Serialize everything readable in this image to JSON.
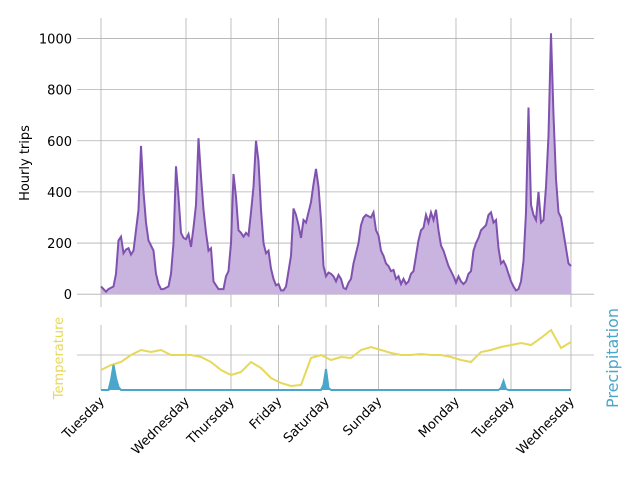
{
  "chart_data": [
    {
      "type": "area",
      "y_label": "Hourly trips",
      "xlim": [
        -9.6,
        197.2
      ],
      "ylim": [
        -50,
        1080
      ],
      "yticks": [
        0,
        200,
        400,
        600,
        800,
        1000
      ],
      "grid": true,
      "series": [
        {
          "name": "Hourly trips",
          "color": "#8052b0",
          "fill": "#c9b4df",
          "x": [
            0,
            1,
            2,
            3,
            4,
            5,
            6,
            7,
            8,
            9,
            10,
            11,
            12,
            13,
            14,
            15,
            16,
            17,
            18,
            19,
            20,
            21,
            22,
            23,
            24,
            25,
            26,
            27,
            28,
            29,
            30,
            31,
            32,
            33,
            34,
            35,
            36,
            37,
            38,
            39,
            40,
            41,
            42,
            43,
            44,
            45,
            46,
            47,
            48,
            49,
            50,
            51,
            52,
            53,
            54,
            55,
            56,
            57,
            58,
            59,
            60,
            61,
            62,
            63,
            64,
            65,
            66,
            67,
            68,
            69,
            70,
            71,
            72,
            73,
            74,
            75,
            76,
            77,
            78,
            79,
            80,
            81,
            82,
            83,
            84,
            85,
            86,
            87,
            88,
            89,
            90,
            91,
            92,
            93,
            94,
            95,
            96,
            97,
            98,
            99,
            100,
            101,
            102,
            103,
            104,
            105,
            106,
            107,
            108,
            109,
            110,
            111,
            112,
            113,
            114,
            115,
            116,
            117,
            118,
            119,
            120,
            121,
            122,
            123,
            124,
            125,
            126,
            127,
            128,
            129,
            130,
            131,
            132,
            133,
            134,
            135,
            136,
            137,
            138,
            139,
            140,
            141,
            142,
            143,
            144,
            145,
            146,
            147,
            148,
            149,
            150,
            151,
            152,
            153,
            154,
            155,
            156,
            157,
            158,
            159,
            160,
            161,
            162,
            163,
            164,
            165,
            166,
            167,
            168,
            169,
            170,
            171,
            172,
            173,
            174,
            175,
            176,
            177,
            178,
            179,
            180,
            181,
            182,
            183,
            184,
            185,
            186,
            187,
            188
          ],
          "values": [
            30,
            20,
            10,
            20,
            25,
            30,
            80,
            210,
            225,
            160,
            175,
            180,
            155,
            170,
            250,
            330,
            580,
            400,
            280,
            210,
            190,
            170,
            80,
            40,
            20,
            20,
            25,
            30,
            80,
            200,
            500,
            380,
            240,
            220,
            215,
            235,
            185,
            260,
            350,
            610,
            460,
            330,
            240,
            170,
            180,
            50,
            35,
            20,
            20,
            20,
            70,
            90,
            200,
            470,
            380,
            250,
            240,
            225,
            240,
            230,
            320,
            420,
            600,
            520,
            330,
            200,
            160,
            170,
            100,
            60,
            35,
            40,
            15,
            15,
            30,
            90,
            150,
            335,
            310,
            270,
            220,
            290,
            280,
            320,
            360,
            430,
            490,
            420,
            290,
            110,
            70,
            85,
            80,
            70,
            50,
            75,
            60,
            25,
            20,
            45,
            60,
            120,
            160,
            200,
            270,
            300,
            310,
            305,
            300,
            320,
            250,
            230,
            170,
            150,
            120,
            110,
            90,
            95,
            60,
            70,
            40,
            60,
            40,
            50,
            80,
            90,
            150,
            210,
            250,
            260,
            310,
            280,
            320,
            290,
            330,
            250,
            190,
            170,
            140,
            110,
            90,
            70,
            45,
            70,
            50,
            40,
            50,
            80,
            90,
            170,
            200,
            220,
            250,
            260,
            270,
            310,
            320,
            280,
            290,
            180,
            120,
            130,
            110,
            80,
            50,
            30,
            15,
            20,
            50,
            130,
            320,
            730,
            350,
            310,
            290,
            400,
            280,
            290,
            420,
            620,
            1020,
            700,
            450,
            320,
            300,
            240,
            180,
            120,
            110
          ]
        }
      ]
    },
    {
      "type": "line",
      "y_label": "Temperature",
      "y2_label": "Precipitation",
      "xlim": [
        -9.6,
        197.2
      ],
      "ylim": [
        0,
        65
      ],
      "y2lim": [
        0,
        65
      ],
      "gridlines": [
        35
      ],
      "grid": true,
      "xticks": [
        {
          "value": 0,
          "label": "Tuesday"
        },
        {
          "value": 34,
          "label": "Wednesday"
        },
        {
          "value": 52,
          "label": "Thursday"
        },
        {
          "value": 71,
          "label": "Friday"
        },
        {
          "value": 90,
          "label": "Saturday"
        },
        {
          "value": 111,
          "label": "Sunday"
        },
        {
          "value": 142,
          "label": "Monday"
        },
        {
          "value": 164,
          "label": "Tuesday"
        },
        {
          "value": 188,
          "label": "Wednesday"
        }
      ],
      "series": [
        {
          "name": "Temperature",
          "color": "#e6d95a",
          "x": [
            0,
            4,
            8,
            12,
            16,
            20,
            24,
            28,
            32,
            36,
            40,
            44,
            48,
            52,
            56,
            60,
            64,
            68,
            72,
            76,
            80,
            84,
            88,
            92,
            96,
            100,
            104,
            108,
            112,
            116,
            120,
            124,
            128,
            132,
            136,
            140,
            144,
            148,
            152,
            156,
            160,
            164,
            168,
            172,
            176,
            180,
            184,
            188
          ],
          "values": [
            20,
            25,
            28,
            35,
            40,
            38,
            40,
            35,
            35,
            35,
            33,
            28,
            20,
            15,
            18,
            28,
            22,
            12,
            7,
            4,
            5,
            32,
            35,
            30,
            33,
            32,
            40,
            43,
            40,
            37,
            35,
            35,
            36,
            35,
            35,
            33,
            30,
            28,
            38,
            40,
            43,
            45,
            47,
            45,
            52,
            60,
            42,
            48
          ]
        },
        {
          "name": "Precipitation",
          "color": "#4aa6cb",
          "axis": "y2",
          "x": [
            0,
            3,
            4,
            5,
            6,
            7,
            8,
            88,
            89,
            90,
            91,
            92,
            159,
            160,
            161,
            162,
            163,
            188
          ],
          "values": [
            0,
            0,
            10,
            25,
            12,
            3,
            0,
            0,
            5,
            21,
            2,
            0,
            0,
            2,
            9,
            1,
            0,
            0
          ]
        }
      ]
    }
  ]
}
